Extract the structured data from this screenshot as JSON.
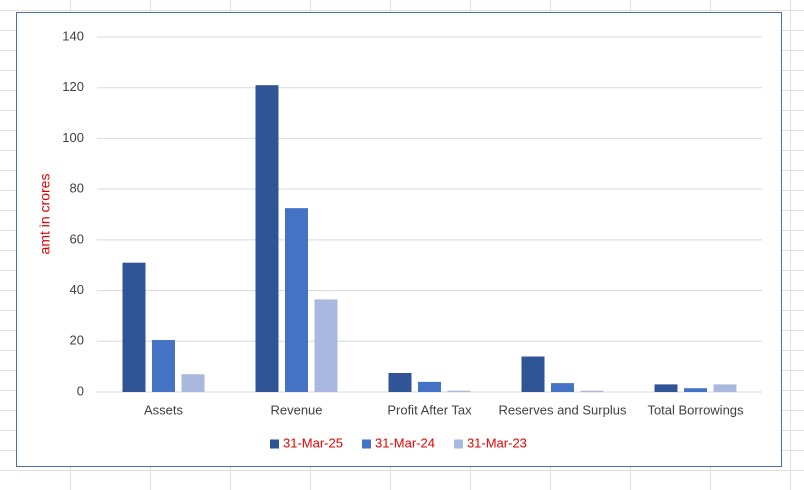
{
  "chart_data": {
    "type": "bar",
    "y_label": "amt in crores",
    "categories": [
      "Assets",
      "Revenue",
      "Profit After Tax",
      "Reserves and Surplus",
      "Total Borrowings"
    ],
    "series": [
      {
        "name": "31-Mar-25",
        "color": "#2f5597",
        "values": [
          51,
          121,
          7.5,
          14,
          3
        ]
      },
      {
        "name": "31-Mar-24",
        "color": "#4472c4",
        "values": [
          20.5,
          72.5,
          4,
          3.5,
          1.5
        ]
      },
      {
        "name": "31-Mar-23",
        "color": "#a9b8de",
        "values": [
          7,
          36.5,
          0.5,
          0.5,
          3
        ]
      }
    ],
    "ylim": [
      0,
      140
    ],
    "yticks": [
      0,
      20,
      40,
      60,
      80,
      100,
      120,
      140
    ],
    "grid": true,
    "legend": "bottom"
  }
}
